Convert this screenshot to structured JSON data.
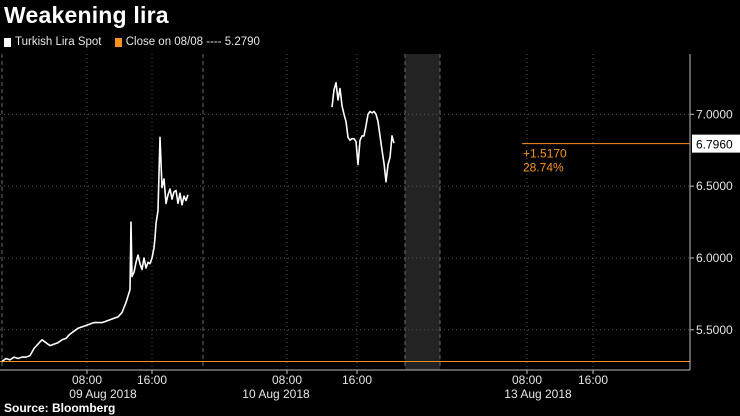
{
  "title": "Weakening lira",
  "source": "Source: Bloomberg",
  "colors": {
    "series": "#ffffff",
    "reference": "#f7931e",
    "background": "#000000",
    "shade": "#222222"
  },
  "chart_data": {
    "type": "line",
    "y_axis_side": "right",
    "ylim": [
      5.22,
      7.42
    ],
    "y_ticks": [
      {
        "value": 5.5,
        "label": "5.5000"
      },
      {
        "value": 6.0,
        "label": "6.0000"
      },
      {
        "value": 6.5,
        "label": "6.5000"
      },
      {
        "value": 7.0,
        "label": "7.0000"
      }
    ],
    "x_tick_labels": [
      "08:00",
      "16:00",
      "08:00",
      "16:00",
      "08:00",
      "16:00"
    ],
    "day_labels": [
      "09 Aug 2018",
      "10 Aug 2018",
      "13 Aug 2018"
    ],
    "series": [
      {
        "name": "Turkish Lira Spot",
        "color": "#ffffff",
        "points": [
          [
            0.0,
            5.28
          ],
          [
            0.02,
            5.3
          ],
          [
            0.04,
            5.29
          ],
          [
            0.06,
            5.31
          ],
          [
            0.08,
            5.3
          ],
          [
            0.1,
            5.31
          ],
          [
            0.12,
            5.31
          ],
          [
            0.14,
            5.32
          ],
          [
            0.16,
            5.37
          ],
          [
            0.18,
            5.4
          ],
          [
            0.2,
            5.43
          ],
          [
            0.22,
            5.41
          ],
          [
            0.24,
            5.39
          ],
          [
            0.26,
            5.4
          ],
          [
            0.28,
            5.41
          ],
          [
            0.3,
            5.43
          ],
          [
            0.32,
            5.44
          ],
          [
            0.34,
            5.47
          ],
          [
            0.36,
            5.49
          ],
          [
            0.38,
            5.51
          ],
          [
            0.4,
            5.52
          ],
          [
            0.42,
            5.53
          ],
          [
            0.44,
            5.54
          ],
          [
            0.46,
            5.55
          ],
          [
            0.48,
            5.55
          ],
          [
            0.5,
            5.55
          ],
          [
            0.52,
            5.56
          ],
          [
            0.54,
            5.57
          ],
          [
            0.56,
            5.58
          ],
          [
            0.58,
            5.59
          ],
          [
            0.6,
            5.62
          ],
          [
            0.62,
            5.69
          ],
          [
            0.64,
            5.78
          ],
          [
            0.645,
            6.25
          ],
          [
            0.65,
            5.87
          ],
          [
            0.66,
            5.9
          ],
          [
            0.67,
            5.97
          ],
          [
            0.68,
            6.02
          ],
          [
            0.69,
            5.96
          ],
          [
            0.7,
            5.92
          ],
          [
            0.71,
            6.0
          ],
          [
            0.72,
            5.93
          ],
          [
            0.73,
            5.97
          ],
          [
            0.74,
            5.96
          ],
          [
            0.75,
            6.0
          ],
          [
            0.76,
            6.07
          ],
          [
            0.765,
            6.14
          ],
          [
            0.77,
            6.24
          ],
          [
            0.78,
            6.33
          ],
          [
            0.79,
            6.84
          ],
          [
            0.8,
            6.49
          ],
          [
            0.81,
            6.55
          ],
          [
            0.82,
            6.38
          ],
          [
            0.83,
            6.44
          ],
          [
            0.84,
            6.48
          ],
          [
            0.85,
            6.41
          ],
          [
            0.86,
            6.46
          ],
          [
            0.87,
            6.47
          ],
          [
            0.88,
            6.38
          ],
          [
            0.89,
            6.45
          ],
          [
            0.9,
            6.37
          ],
          [
            0.91,
            6.43
          ],
          [
            0.92,
            6.4
          ],
          [
            0.93,
            6.44
          ],
          null,
          [
            1.65,
            7.05
          ],
          [
            1.66,
            7.17
          ],
          [
            1.67,
            7.22
          ],
          [
            1.68,
            7.1
          ],
          [
            1.69,
            7.18
          ],
          [
            1.7,
            7.06
          ],
          [
            1.71,
            7.0
          ],
          [
            1.72,
            6.95
          ],
          [
            1.73,
            6.84
          ],
          [
            1.74,
            6.82
          ],
          [
            1.75,
            6.83
          ],
          [
            1.76,
            6.83
          ],
          [
            1.77,
            6.81
          ],
          [
            1.78,
            6.65
          ],
          [
            1.79,
            6.82
          ],
          [
            1.8,
            6.85
          ],
          [
            1.81,
            6.85
          ],
          [
            1.82,
            6.92
          ],
          [
            1.83,
            7.0
          ],
          [
            1.84,
            7.02
          ],
          [
            1.85,
            7.01
          ],
          [
            1.86,
            7.02
          ],
          [
            1.87,
            7.0
          ],
          [
            1.88,
            6.95
          ],
          [
            1.89,
            6.85
          ],
          [
            1.9,
            6.75
          ],
          [
            1.91,
            6.66
          ],
          [
            1.92,
            6.53
          ],
          [
            1.93,
            6.65
          ],
          [
            1.94,
            6.7
          ],
          [
            1.95,
            6.85
          ],
          [
            1.96,
            6.8
          ]
        ]
      }
    ],
    "reference_line": {
      "name": "Close on 08/08",
      "value": 5.279,
      "label": "5.2790",
      "color": "#f7931e"
    },
    "last_value": {
      "value": 6.796,
      "label": "6.7960"
    },
    "annotation": {
      "change": "+1.5170",
      "percent": "28.74%",
      "color": "#f7931e"
    },
    "legend": [
      {
        "label": "Turkish Lira Spot",
        "color": "#ffffff"
      },
      {
        "label": "Close on 08/08 ---- 5.2790",
        "color": "#f7931e"
      }
    ],
    "legend_position": "top-left",
    "grid": true
  }
}
